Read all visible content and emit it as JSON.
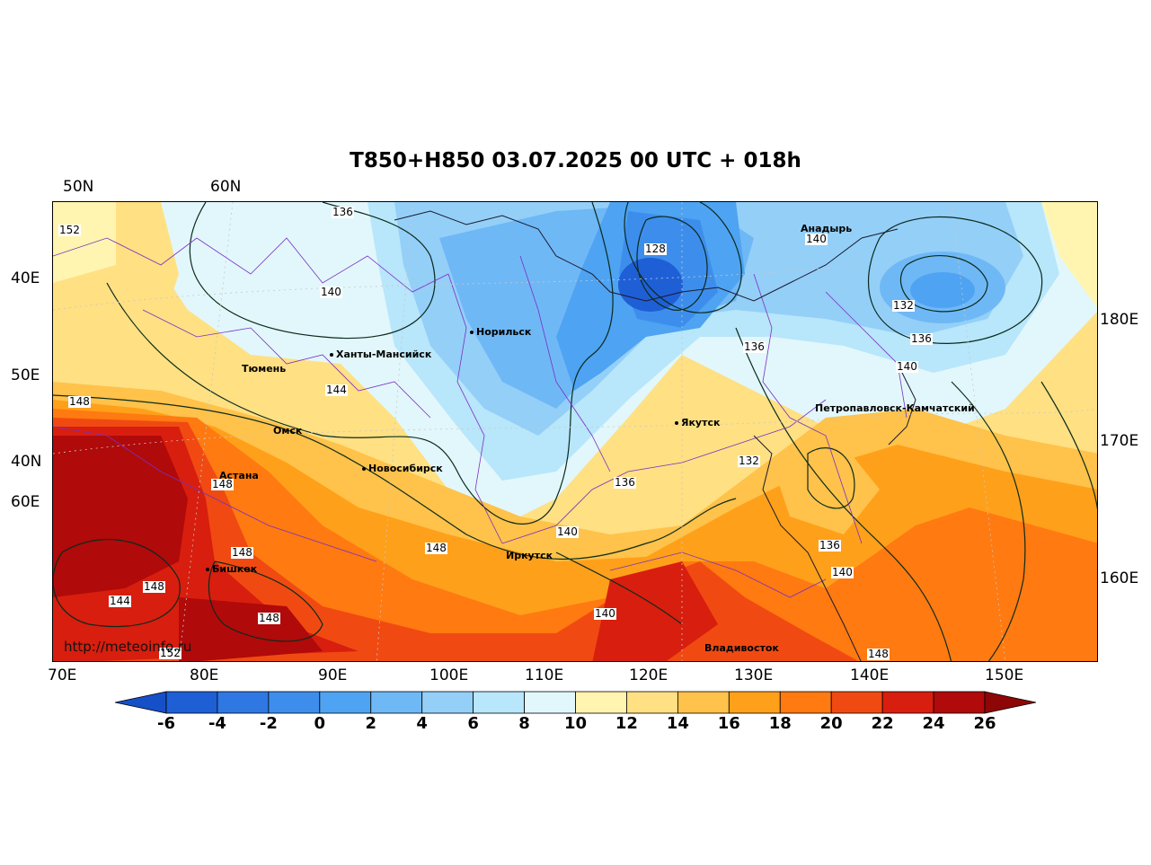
{
  "title": "T850+H850 03.07.2025 00 UTC + 018h",
  "watermark": "http://meteoinfo.ru",
  "lon_labels_bottom": [
    "70E",
    "80E",
    "90E",
    "100E",
    "110E",
    "120E",
    "130E",
    "140E",
    "150E"
  ],
  "lat_labels_top": [
    "50N",
    "60N"
  ],
  "lat_labels_left": [
    "40E",
    "50E",
    "40N",
    "60E"
  ],
  "lat_labels_right": [
    "180E",
    "170E",
    "160E"
  ],
  "cities": [
    "Норильск",
    "Ханты-Мансийск",
    "Тюмень",
    "Омск",
    "Астана",
    "Новосибирск",
    "Иркутск",
    "Бишкек",
    "Якутск",
    "Анадырь",
    "Петропавловск-Камчатский",
    "Владивосток"
  ],
  "contour_labels": [
    "152",
    "136",
    "140",
    "144",
    "148",
    "128",
    "140",
    "132",
    "136",
    "140",
    "136",
    "132",
    "136",
    "140",
    "148",
    "140",
    "148",
    "148",
    "144",
    "148",
    "148",
    "140",
    "148",
    "152"
  ],
  "colorbar": {
    "ticks": [
      "-6",
      "-4",
      "-2",
      "0",
      "2",
      "4",
      "6",
      "8",
      "10",
      "12",
      "14",
      "16",
      "18",
      "20",
      "22",
      "24",
      "26"
    ],
    "colors": [
      "#1f5fd6",
      "#2f78e4",
      "#3d8eec",
      "#4ea3f2",
      "#6fb8f6",
      "#94cff8",
      "#b8e6fa",
      "#e2f7fb",
      "#fff5b0",
      "#ffe083",
      "#ffc24a",
      "#ffa01a",
      "#ff7a10",
      "#f04a12",
      "#d81e0e",
      "#b00a0a"
    ],
    "low_color": "#1550c8",
    "high_color": "#8e0606"
  }
}
